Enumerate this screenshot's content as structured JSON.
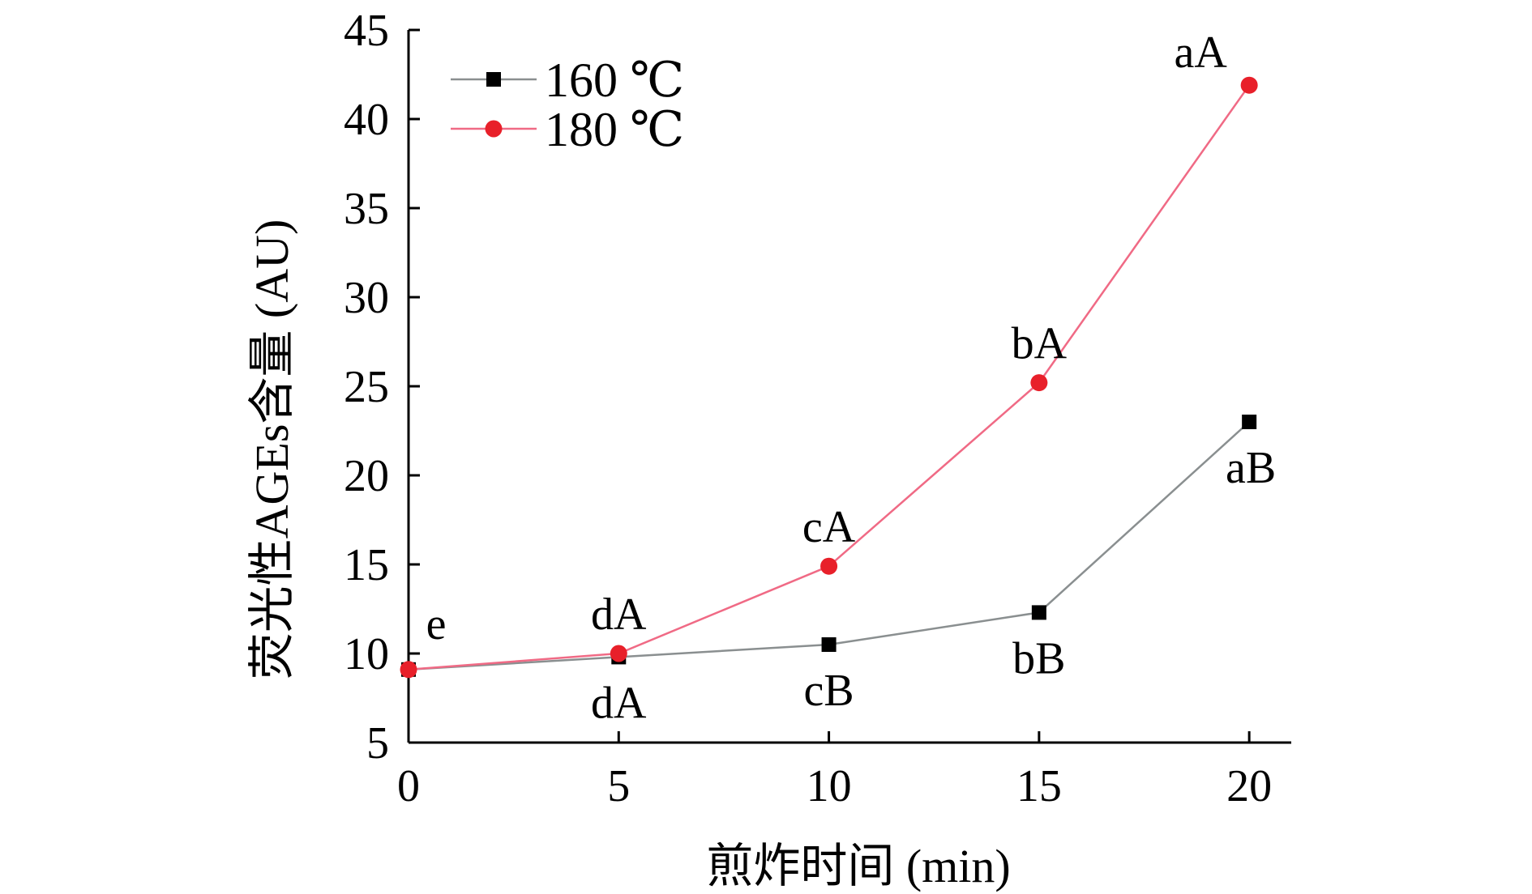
{
  "chart_data": {
    "type": "line",
    "title": "",
    "xlabel": "煎炸时间 (min)",
    "ylabel": "荧光性AGEs含量 (AU)",
    "x": [
      0,
      5,
      10,
      15,
      20
    ],
    "xticks": [
      "0",
      "5",
      "10",
      "15",
      "20"
    ],
    "yticks": [
      "5",
      "10",
      "15",
      "20",
      "25",
      "30",
      "35",
      "40",
      "45"
    ],
    "xlim": [
      0,
      21
    ],
    "ylim": [
      5,
      45
    ],
    "grid": false,
    "legend_position": "top-left",
    "series": [
      {
        "name": "160 ℃",
        "marker": "square",
        "line_color": "#8a8f90",
        "marker_color": "#000000",
        "values": [
          9.1,
          9.8,
          10.5,
          12.3,
          23.0
        ],
        "labels": [
          "",
          "dA",
          "cB",
          "bB",
          "aB"
        ]
      },
      {
        "name": "180 ℃",
        "marker": "circle",
        "line_color": "#f06a85",
        "marker_color": "#e8202a",
        "values": [
          9.1,
          10.0,
          14.9,
          25.2,
          41.9
        ],
        "labels": [
          "e",
          "dA",
          "cA",
          "bA",
          "aA"
        ]
      }
    ]
  }
}
